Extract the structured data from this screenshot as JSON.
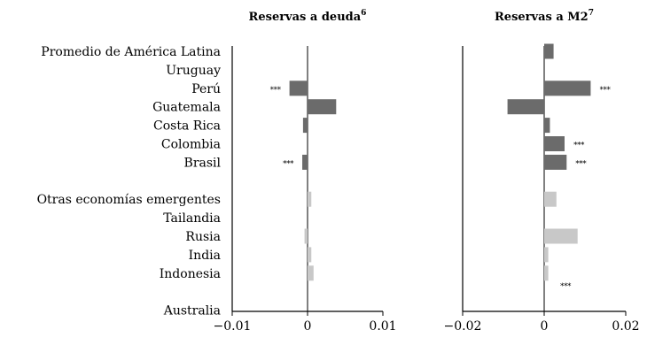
{
  "chart_data": {
    "type": "bar",
    "orientation": "horizontal",
    "categories": [
      "Promedio de América Latina",
      "Uruguay",
      "Perú",
      "Guatemala",
      "Costa Rica",
      "Colombia",
      "Brasil",
      "",
      "Otras economías emergentes",
      "Tailandia",
      "Rusia",
      "India",
      "Indonesia",
      "",
      "Australia"
    ],
    "groups": [
      {
        "name": "",
        "members": [
          "Promedio de América Latina",
          "Uruguay",
          "Perú",
          "Guatemala",
          "Costa Rica",
          "Colombia",
          "Brasil"
        ],
        "color": "#6b6b6b"
      },
      {
        "name": "",
        "members": [
          "Otras economías emergentes",
          "Tailandia",
          "Rusia",
          "India",
          "Indonesia",
          "Australia"
        ],
        "color": "#c8c8c8"
      }
    ],
    "panels": [
      {
        "title": "Reservas a deuda",
        "title_superscript": "6",
        "xlim": [
          -0.01,
          0.01
        ],
        "xticks": [
          -0.01,
          0,
          0.01
        ],
        "xtick_labels": [
          "−0.01",
          "0",
          "0.01"
        ],
        "values": [
          0,
          0,
          -0.0024,
          0.0038,
          -0.0006,
          0,
          -0.0007,
          null,
          0.0005,
          0,
          -0.0004,
          0.0005,
          0.0008,
          null,
          0
        ],
        "significance": [
          "",
          "",
          "***",
          "",
          "",
          "",
          "***",
          "",
          "",
          "",
          "",
          "",
          "",
          "",
          ""
        ]
      },
      {
        "title": "Reservas a M2",
        "title_superscript": "7",
        "xlim": [
          -0.02,
          0.02
        ],
        "xticks": [
          -0.02,
          0,
          0.02
        ],
        "xtick_labels": [
          "−0.02",
          "0",
          "0.02"
        ],
        "values": [
          0.0023,
          0,
          0.0114,
          -0.009,
          0.0014,
          0.005,
          0.0055,
          null,
          0.003,
          0,
          0.0082,
          0.001,
          0.001,
          null,
          0
        ],
        "significance": [
          "",
          "",
          "***",
          "",
          "",
          "***",
          "***",
          "",
          "",
          "",
          "",
          "",
          "***",
          "",
          ""
        ]
      }
    ],
    "significance_marker": "***",
    "grid": false,
    "legend": "none"
  }
}
